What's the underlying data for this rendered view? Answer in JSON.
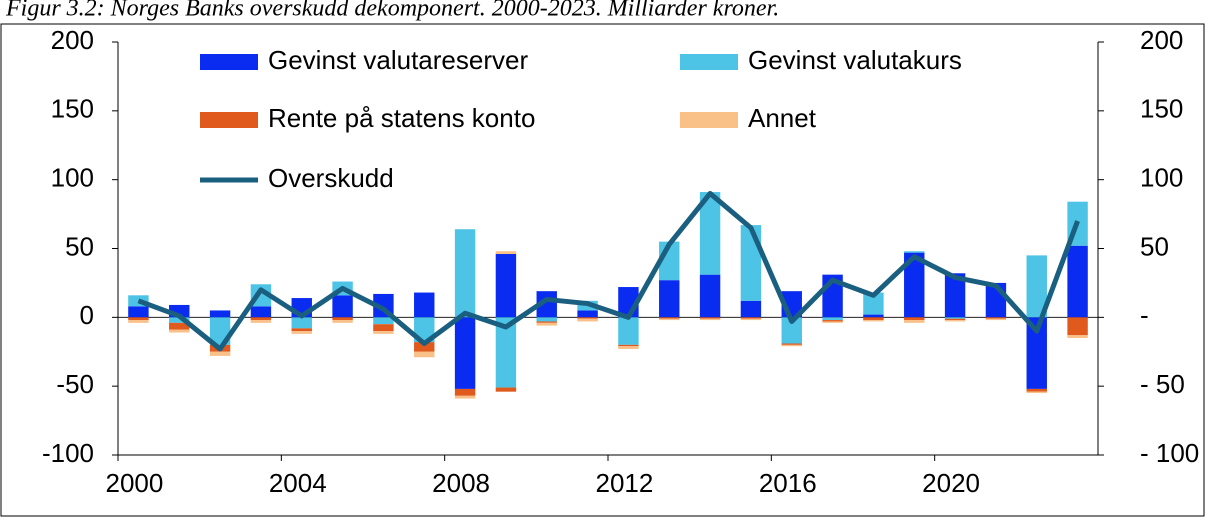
{
  "chart_data": {
    "type": "bar",
    "title": "Figur 3.2: Norges Banks overskudd dekomponert. 2000-2023. Milliarder kroner.",
    "categories": [
      "2000",
      null,
      null,
      null,
      "2004",
      null,
      null,
      null,
      "2008",
      null,
      null,
      null,
      "2012",
      null,
      null,
      null,
      "2016",
      null,
      null,
      null,
      "2020",
      null,
      null,
      null
    ],
    "stacked": true,
    "series": [
      {
        "name": "Gevinst valutareserver",
        "color": "#0a2cf0",
        "values": [
          8,
          9,
          5,
          8,
          14,
          16,
          17,
          18,
          -52,
          46,
          19,
          5,
          22,
          27,
          31,
          12,
          19,
          31,
          2,
          47,
          32,
          25,
          -52,
          52
        ]
      },
      {
        "name": "Gevinst valutakurs",
        "color": "#4dc3e6",
        "values": [
          8,
          -4,
          -20,
          16,
          -8,
          10,
          -5,
          -18,
          64,
          -51,
          -3,
          7,
          -20,
          28,
          60,
          55,
          -19,
          -2,
          16,
          1,
          -1,
          0,
          45,
          32
        ]
      },
      {
        "name": "Rente på statens konto",
        "color": "#e05a1e",
        "values": [
          -2,
          -5,
          -5,
          -2,
          -2,
          -2,
          -5,
          -7,
          -5,
          -3,
          -1,
          -1,
          -1,
          -1,
          -1,
          -1,
          -1,
          -1,
          -2,
          -2,
          -1,
          -1,
          -2,
          -13
        ]
      },
      {
        "name": "Annet",
        "color": "#f9c088",
        "values": [
          -2,
          -2,
          -3,
          -2,
          -2,
          -2,
          -2,
          -4,
          -2,
          2,
          -2,
          -2,
          -2,
          -1,
          -1,
          -1,
          -1,
          -1,
          -1,
          -2,
          -1,
          -1,
          -1,
          -2
        ]
      },
      {
        "name": "Overskudd",
        "type": "line",
        "color": "#1b5f80",
        "values": [
          12,
          1,
          -23,
          20,
          1,
          21,
          6,
          -19,
          3,
          -7,
          13,
          10,
          0,
          53,
          90,
          65,
          -3,
          27,
          16,
          44,
          29,
          23,
          -10,
          70
        ]
      }
    ],
    "ylim": [
      -100,
      200
    ],
    "yticks": [
      -100,
      -50,
      0,
      50,
      100,
      150,
      200
    ],
    "y2lim": [
      -100,
      200
    ],
    "y2ticks": [
      {
        "value": -100,
        "label": "- 100"
      },
      {
        "value": -50,
        "label": "- 50"
      },
      {
        "value": 0,
        "label": "-"
      },
      50,
      100,
      150,
      200
    ],
    "legend": "top-left"
  }
}
